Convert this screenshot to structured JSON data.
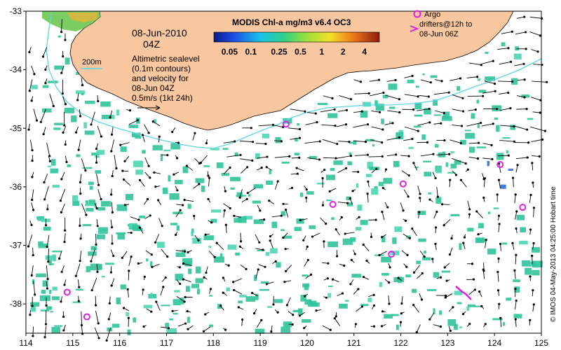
{
  "map": {
    "lon_range": [
      114,
      125
    ],
    "lat_range": [
      -38.5,
      -33
    ],
    "x_ticks": [
      "114",
      "115",
      "116",
      "117",
      "118",
      "119",
      "120",
      "121",
      "122",
      "123",
      "124",
      "125"
    ],
    "y_ticks": [
      "-33",
      "-34",
      "-35",
      "-36",
      "-37",
      "-38"
    ],
    "colors": {
      "land": "#f8c7a0",
      "coast": "#000000",
      "isobath": "#5ad6e6",
      "drifter": "#e020e0",
      "arrow": "#000000",
      "chl_low": "#2c6fe0",
      "chl_mid": "#2fc49a",
      "chl_high": "#e0401a"
    }
  },
  "header": {
    "date": "08-Jun-2010",
    "time": "04Z"
  },
  "colorbar": {
    "title": "MODIS Chl-a mg/m3 v6.4 OC3",
    "ticks": [
      "0.05",
      "0.1",
      "0.25",
      "0.5",
      "1",
      "2",
      "4"
    ]
  },
  "legend": {
    "isobath_label": "200m",
    "altimetry_lines": [
      "Altimetric sealevel",
      "(0.1m contours)",
      "and velocity for",
      "08-Jun 04Z",
      "0.5m/s (1kt 24h)"
    ],
    "argo_lines": [
      "Argo",
      "drifters@12h to",
      "08-Jun 06Z"
    ]
  },
  "credit": "© IMOS 04-May-2013 04:25:00 Hobart time",
  "drifters": [
    {
      "lon": 119.55,
      "lat": -34.93
    },
    {
      "lon": 120.55,
      "lat": -36.3
    },
    {
      "lon": 122.05,
      "lat": -35.95
    },
    {
      "lon": 121.8,
      "lat": -37.15
    },
    {
      "lon": 124.12,
      "lat": -35.62
    },
    {
      "lon": 124.6,
      "lat": -36.35
    },
    {
      "lon": 114.88,
      "lat": -37.8
    },
    {
      "lon": 115.3,
      "lat": -38.22
    }
  ]
}
